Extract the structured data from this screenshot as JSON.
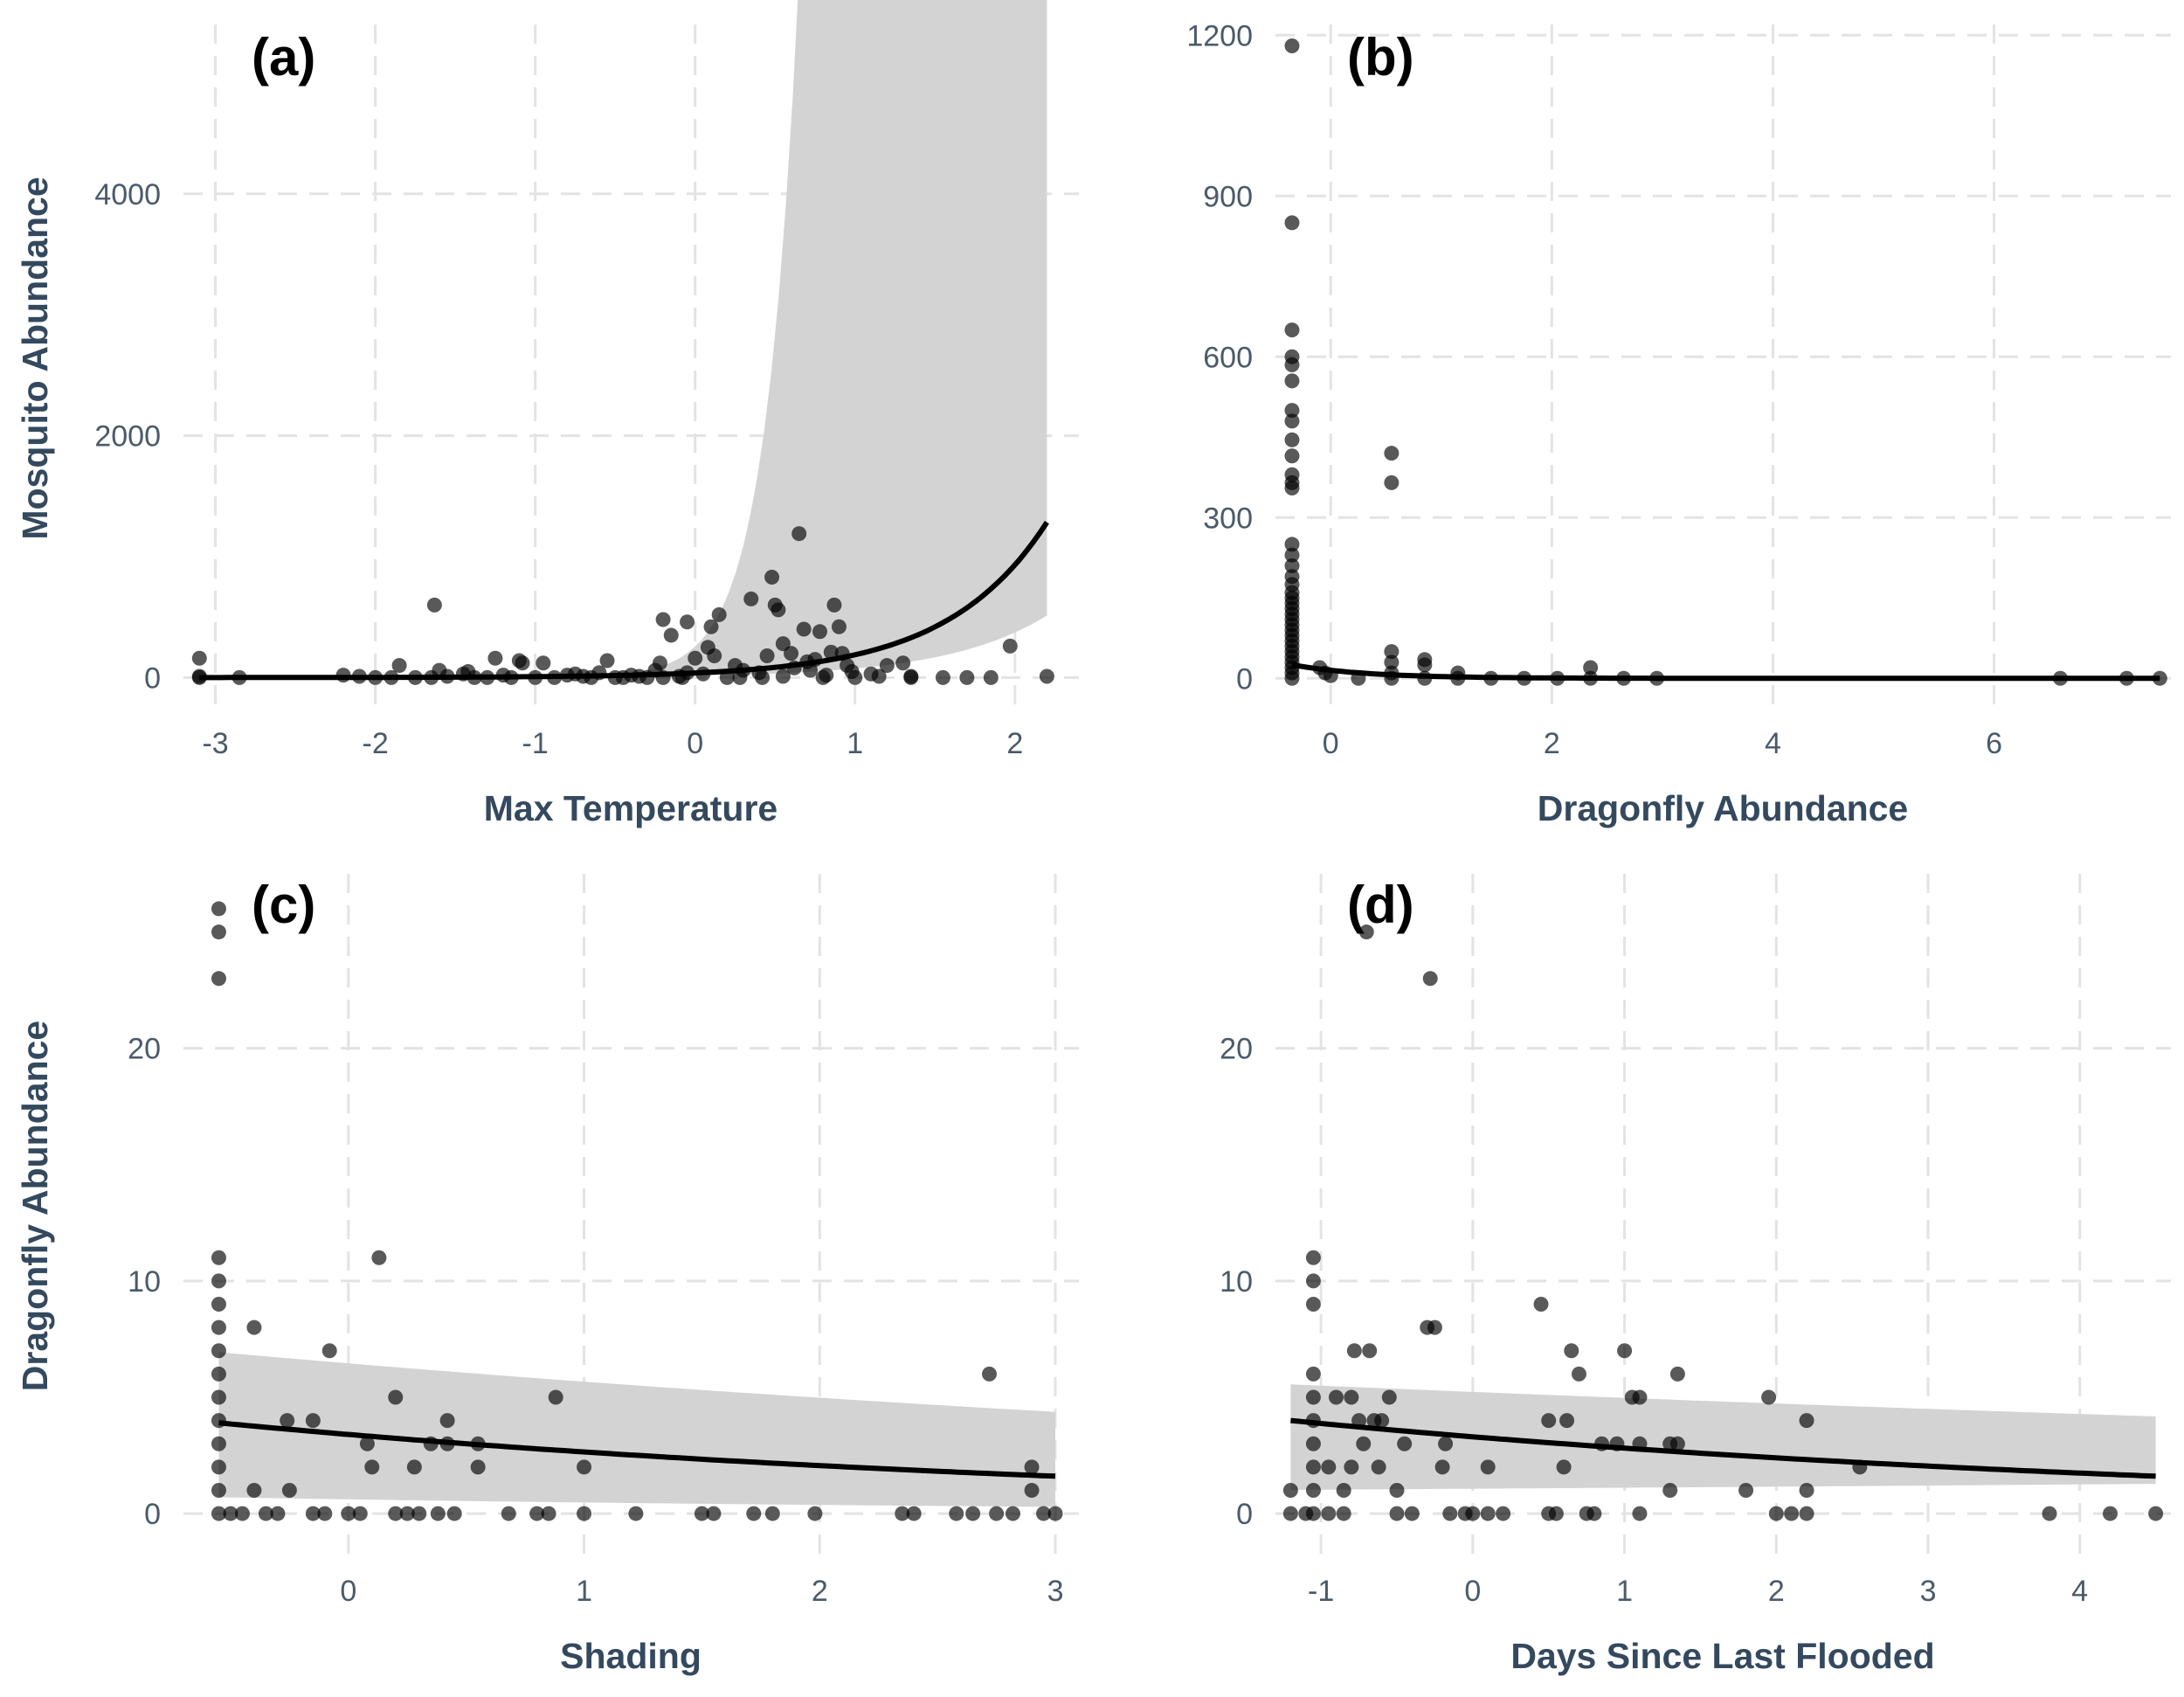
{
  "chart_data": [
    {
      "id": "a",
      "type": "scatter",
      "panel_label": "(a)",
      "xlabel": "Max Temperature",
      "ylabel": "Mosquito Abundance",
      "xlim": [
        -3.2,
        2.4
      ],
      "ylim": [
        -250,
        5400
      ],
      "xticks": [
        -3,
        -2,
        -1,
        0,
        1,
        2
      ],
      "yticks": [
        0,
        2000,
        4000
      ],
      "grid": true,
      "fit": {
        "model": "exp",
        "b0": 38,
        "b1": 1.6,
        "lo_scale": 0.4,
        "hi_scale": 1.6,
        "hi_slope": 3.2,
        "lo_slope": 0.0
      },
      "points": [
        [
          -3.1,
          160
        ],
        [
          -3.1,
          10
        ],
        [
          -3.1,
          0
        ],
        [
          -2.85,
          0
        ],
        [
          -2.2,
          20
        ],
        [
          -2.1,
          10
        ],
        [
          -2.0,
          0
        ],
        [
          -1.9,
          0
        ],
        [
          -1.85,
          100
        ],
        [
          -1.75,
          0
        ],
        [
          -1.65,
          0
        ],
        [
          -1.63,
          600
        ],
        [
          -1.6,
          60
        ],
        [
          -1.55,
          10
        ],
        [
          -1.45,
          30
        ],
        [
          -1.42,
          50
        ],
        [
          -1.38,
          0
        ],
        [
          -1.3,
          0
        ],
        [
          -1.25,
          160
        ],
        [
          -1.2,
          20
        ],
        [
          -1.15,
          0
        ],
        [
          -1.1,
          140
        ],
        [
          -1.08,
          120
        ],
        [
          -1.0,
          0
        ],
        [
          -0.95,
          120
        ],
        [
          -0.88,
          0
        ],
        [
          -0.8,
          20
        ],
        [
          -0.75,
          30
        ],
        [
          -0.7,
          10
        ],
        [
          -0.65,
          0
        ],
        [
          -0.6,
          40
        ],
        [
          -0.55,
          140
        ],
        [
          -0.5,
          0
        ],
        [
          -0.45,
          0
        ],
        [
          -0.4,
          20
        ],
        [
          -0.35,
          10
        ],
        [
          -0.3,
          0
        ],
        [
          -0.25,
          60
        ],
        [
          -0.2,
          0
        ],
        [
          -0.22,
          120
        ],
        [
          -0.15,
          350
        ],
        [
          -0.1,
          10
        ],
        [
          -0.05,
          40
        ],
        [
          -0.2,
          480
        ],
        [
          -0.08,
          0
        ],
        [
          0.0,
          160
        ],
        [
          0.05,
          30
        ],
        [
          0.08,
          250
        ],
        [
          0.1,
          420
        ],
        [
          0.12,
          180
        ],
        [
          0.15,
          520
        ],
        [
          -0.05,
          460
        ],
        [
          0.2,
          0
        ],
        [
          0.25,
          100
        ],
        [
          0.3,
          60
        ],
        [
          0.28,
          0
        ],
        [
          0.35,
          650
        ],
        [
          0.4,
          40
        ],
        [
          0.42,
          0
        ],
        [
          0.45,
          180
        ],
        [
          0.48,
          830
        ],
        [
          0.5,
          600
        ],
        [
          0.52,
          560
        ],
        [
          0.55,
          280
        ],
        [
          0.55,
          10
        ],
        [
          0.6,
          200
        ],
        [
          0.62,
          80
        ],
        [
          0.65,
          1190
        ],
        [
          0.68,
          400
        ],
        [
          0.7,
          130
        ],
        [
          0.72,
          60
        ],
        [
          0.75,
          150
        ],
        [
          0.78,
          380
        ],
        [
          0.8,
          0
        ],
        [
          0.82,
          20
        ],
        [
          0.85,
          210
        ],
        [
          0.87,
          600
        ],
        [
          0.9,
          420
        ],
        [
          0.92,
          200
        ],
        [
          0.95,
          100
        ],
        [
          0.98,
          50
        ],
        [
          1.0,
          0
        ],
        [
          1.1,
          30
        ],
        [
          1.15,
          10
        ],
        [
          1.2,
          100
        ],
        [
          1.3,
          120
        ],
        [
          1.35,
          10
        ],
        [
          1.35,
          0
        ],
        [
          1.55,
          0
        ],
        [
          1.7,
          0
        ],
        [
          1.85,
          0
        ],
        [
          1.97,
          260
        ],
        [
          2.2,
          10
        ]
      ]
    },
    {
      "id": "b",
      "type": "scatter",
      "panel_label": "(b)",
      "xlabel": "Dragonfly Abundance",
      "ylabel": "",
      "xlim": [
        -0.5,
        7.6
      ],
      "ylim": [
        -55,
        1220
      ],
      "xticks": [
        0,
        2,
        4,
        6
      ],
      "yticks": [
        0,
        300,
        600,
        900,
        1200
      ],
      "grid": true,
      "fit": {
        "model": "exp",
        "b0": 15,
        "b1": -1.5,
        "lo_scale": 0.85,
        "hi_scale": 1.15,
        "hi_slope": 0,
        "lo_slope": 0,
        "x_start": -0.35
      },
      "points": [
        [
          -0.35,
          1180
        ],
        [
          -0.35,
          850
        ],
        [
          -0.35,
          650
        ],
        [
          -0.35,
          600
        ],
        [
          -0.35,
          585
        ],
        [
          -0.35,
          555
        ],
        [
          -0.35,
          500
        ],
        [
          -0.35,
          480
        ],
        [
          -0.35,
          445
        ],
        [
          -0.35,
          415
        ],
        [
          -0.35,
          380
        ],
        [
          -0.35,
          365
        ],
        [
          -0.35,
          355
        ],
        [
          -0.35,
          250
        ],
        [
          -0.35,
          230
        ],
        [
          -0.35,
          210
        ],
        [
          -0.35,
          190
        ],
        [
          -0.35,
          175
        ],
        [
          -0.35,
          160
        ],
        [
          -0.35,
          150
        ],
        [
          -0.35,
          140
        ],
        [
          -0.35,
          130
        ],
        [
          -0.35,
          120
        ],
        [
          -0.35,
          110
        ],
        [
          -0.35,
          100
        ],
        [
          -0.35,
          90
        ],
        [
          -0.35,
          80
        ],
        [
          -0.35,
          70
        ],
        [
          -0.35,
          60
        ],
        [
          -0.35,
          50
        ],
        [
          -0.35,
          40
        ],
        [
          -0.35,
          30
        ],
        [
          -0.35,
          20
        ],
        [
          -0.35,
          10
        ],
        [
          -0.35,
          0
        ],
        [
          -0.1,
          20
        ],
        [
          -0.05,
          10
        ],
        [
          0,
          5
        ],
        [
          0.25,
          0
        ],
        [
          0.55,
          420
        ],
        [
          0.55,
          365
        ],
        [
          0.55,
          50
        ],
        [
          0.55,
          30
        ],
        [
          0.55,
          10
        ],
        [
          0.55,
          0
        ],
        [
          0.85,
          35
        ],
        [
          0.85,
          25
        ],
        [
          0.85,
          0
        ],
        [
          1.15,
          10
        ],
        [
          1.15,
          0
        ],
        [
          1.45,
          0
        ],
        [
          1.75,
          0
        ],
        [
          2.05,
          0
        ],
        [
          2.35,
          20
        ],
        [
          2.35,
          0
        ],
        [
          2.65,
          0
        ],
        [
          2.95,
          0
        ],
        [
          6.6,
          0
        ],
        [
          7.2,
          0
        ],
        [
          7.5,
          0
        ]
      ]
    },
    {
      "id": "c",
      "type": "scatter",
      "panel_label": "(c)",
      "xlabel": "Shading",
      "ylabel": "Dragonfly Abundance",
      "xlim": [
        -0.7,
        3.1
      ],
      "ylim": [
        -1.8,
        27.5
      ],
      "xticks": [
        0,
        1,
        2,
        3
      ],
      "yticks": [
        0,
        10,
        20
      ],
      "grid": true,
      "fit": {
        "model": "exp",
        "b0": 3.4,
        "b1": -0.25,
        "lo_scale": 0.18,
        "hi_scale": 2.2,
        "hi_slope": 0.12,
        "lo_slope": 0
      },
      "points": [
        [
          -0.55,
          26
        ],
        [
          -0.55,
          25
        ],
        [
          -0.55,
          23
        ],
        [
          -0.55,
          11
        ],
        [
          -0.55,
          10
        ],
        [
          -0.55,
          9
        ],
        [
          -0.55,
          8
        ],
        [
          -0.55,
          7
        ],
        [
          -0.55,
          6
        ],
        [
          -0.55,
          5
        ],
        [
          -0.55,
          4
        ],
        [
          -0.55,
          3
        ],
        [
          -0.55,
          2
        ],
        [
          -0.55,
          1
        ],
        [
          -0.55,
          0
        ],
        [
          -0.5,
          0
        ],
        [
          -0.45,
          0
        ],
        [
          -0.4,
          8
        ],
        [
          -0.4,
          1
        ],
        [
          -0.35,
          0
        ],
        [
          -0.3,
          0
        ],
        [
          -0.25,
          1
        ],
        [
          -0.26,
          4
        ],
        [
          -0.15,
          4
        ],
        [
          -0.15,
          0
        ],
        [
          -0.1,
          0
        ],
        [
          -0.08,
          7
        ],
        [
          0.0,
          0
        ],
        [
          0.05,
          0
        ],
        [
          0.08,
          3
        ],
        [
          0.1,
          2
        ],
        [
          0.13,
          11
        ],
        [
          0.2,
          5
        ],
        [
          0.2,
          0
        ],
        [
          0.25,
          0
        ],
        [
          0.28,
          2
        ],
        [
          0.3,
          0
        ],
        [
          0.35,
          3
        ],
        [
          0.38,
          0
        ],
        [
          0.42,
          4
        ],
        [
          0.42,
          3
        ],
        [
          0.45,
          0
        ],
        [
          0.55,
          2
        ],
        [
          0.55,
          3
        ],
        [
          0.68,
          0
        ],
        [
          0.8,
          0
        ],
        [
          0.85,
          0
        ],
        [
          0.88,
          5
        ],
        [
          1.0,
          2
        ],
        [
          1.0,
          0
        ],
        [
          1.22,
          0
        ],
        [
          1.5,
          0
        ],
        [
          1.55,
          0
        ],
        [
          1.72,
          0
        ],
        [
          1.8,
          0
        ],
        [
          1.98,
          0
        ],
        [
          2.35,
          0
        ],
        [
          2.4,
          0
        ],
        [
          2.58,
          0
        ],
        [
          2.65,
          0
        ],
        [
          2.72,
          6
        ],
        [
          2.75,
          0
        ],
        [
          2.82,
          0
        ],
        [
          2.9,
          2
        ],
        [
          2.9,
          1
        ],
        [
          2.95,
          0
        ],
        [
          3.0,
          0
        ]
      ]
    },
    {
      "id": "d",
      "type": "scatter",
      "panel_label": "(d)",
      "xlabel": "Days Since Last Flooded",
      "ylabel": "",
      "xlim": [
        -1.3,
        4.6
      ],
      "ylim": [
        -1.8,
        27.5
      ],
      "xticks": [
        -1,
        0,
        1,
        2,
        3,
        4
      ],
      "yticks": [
        0,
        10,
        20
      ],
      "grid": true,
      "fit": {
        "model": "exp",
        "b0": 3.3,
        "b1": -0.16,
        "lo_scale": 0.45,
        "hi_scale": 1.9,
        "hi_slope": 0.11,
        "lo_slope": 0.2,
        "x_start": -1.2
      },
      "points": [
        [
          -1.2,
          1
        ],
        [
          -1.2,
          0
        ],
        [
          -1.1,
          0
        ],
        [
          -1.05,
          11
        ],
        [
          -1.05,
          10
        ],
        [
          -1.05,
          9
        ],
        [
          -1.05,
          6
        ],
        [
          -1.05,
          5
        ],
        [
          -1.05,
          4
        ],
        [
          -1.05,
          3
        ],
        [
          -1.05,
          2
        ],
        [
          -1.05,
          1
        ],
        [
          -1.05,
          0
        ],
        [
          -0.95,
          2
        ],
        [
          -0.95,
          0
        ],
        [
          -0.9,
          5
        ],
        [
          -0.85,
          1
        ],
        [
          -0.85,
          0
        ],
        [
          -0.8,
          5
        ],
        [
          -0.8,
          2
        ],
        [
          -0.78,
          7
        ],
        [
          -0.75,
          4
        ],
        [
          -0.72,
          3
        ],
        [
          -0.7,
          25
        ],
        [
          -0.68,
          7
        ],
        [
          -0.65,
          4
        ],
        [
          -0.62,
          2
        ],
        [
          -0.6,
          4
        ],
        [
          -0.55,
          5
        ],
        [
          -0.5,
          1
        ],
        [
          -0.5,
          0
        ],
        [
          -0.45,
          3
        ],
        [
          -0.4,
          0
        ],
        [
          -0.3,
          8
        ],
        [
          -0.28,
          23
        ],
        [
          -0.25,
          8
        ],
        [
          -0.2,
          2
        ],
        [
          -0.18,
          3
        ],
        [
          -0.15,
          0
        ],
        [
          -0.05,
          0
        ],
        [
          0.0,
          0
        ],
        [
          0.1,
          2
        ],
        [
          0.1,
          0
        ],
        [
          0.2,
          0
        ],
        [
          0.45,
          9
        ],
        [
          0.5,
          4
        ],
        [
          0.5,
          0
        ],
        [
          0.55,
          0
        ],
        [
          0.6,
          2
        ],
        [
          0.62,
          4
        ],
        [
          0.65,
          7
        ],
        [
          0.7,
          6
        ],
        [
          0.75,
          0
        ],
        [
          0.8,
          0
        ],
        [
          0.85,
          3
        ],
        [
          0.95,
          3
        ],
        [
          1.0,
          7
        ],
        [
          1.05,
          5
        ],
        [
          1.1,
          5
        ],
        [
          1.1,
          3
        ],
        [
          1.1,
          0
        ],
        [
          1.3,
          3
        ],
        [
          1.3,
          1
        ],
        [
          1.35,
          6
        ],
        [
          1.35,
          3
        ],
        [
          1.8,
          1
        ],
        [
          1.95,
          5
        ],
        [
          2.0,
          0
        ],
        [
          2.1,
          0
        ],
        [
          2.2,
          4
        ],
        [
          2.2,
          1
        ],
        [
          2.2,
          0
        ],
        [
          2.55,
          2
        ],
        [
          3.8,
          0
        ],
        [
          4.2,
          0
        ],
        [
          4.5,
          0
        ]
      ]
    }
  ]
}
